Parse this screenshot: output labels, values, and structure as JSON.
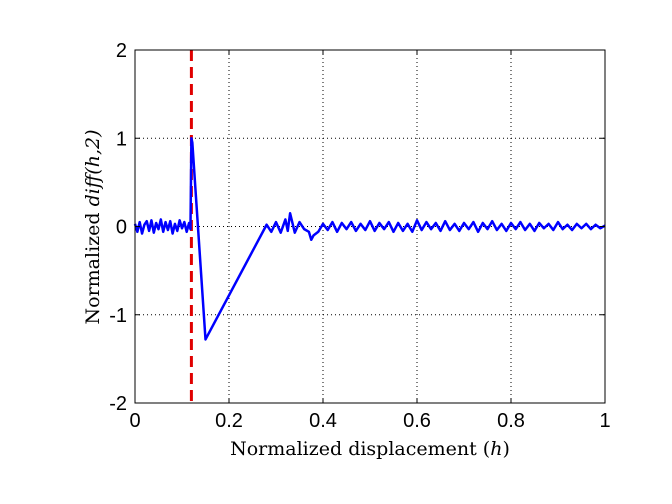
{
  "chart_data": {
    "type": "line",
    "title": "",
    "xlabel_prefix": "Normalized displacement (",
    "xlabel_var": "h",
    "xlabel_suffix": ")",
    "ylabel_prefix": "Normalized ",
    "ylabel_math": "diff(h,2)",
    "xlim": [
      0,
      1
    ],
    "ylim": [
      -2,
      2
    ],
    "xticks": [
      0,
      0.2,
      0.4,
      0.6,
      0.8,
      1
    ],
    "xtick_labels": [
      "0",
      "0.2",
      "0.4",
      "0.6",
      "0.8",
      "1"
    ],
    "yticks": [
      -2,
      -1,
      0,
      1,
      2
    ],
    "ytick_labels": [
      "-2",
      "-1",
      "0",
      "1",
      "2"
    ],
    "grid": true,
    "vline": {
      "x": 0.12,
      "color": "#e00000",
      "style": "dashed"
    },
    "series": [
      {
        "color": "#0000ff",
        "x": [
          0,
          0.005,
          0.01,
          0.015,
          0.02,
          0.025,
          0.03,
          0.035,
          0.04,
          0.045,
          0.05,
          0.055,
          0.06,
          0.065,
          0.07,
          0.075,
          0.08,
          0.085,
          0.09,
          0.095,
          0.1,
          0.105,
          0.11,
          0.115,
          0.118,
          0.12,
          0.122,
          0.15,
          0.28,
          0.29,
          0.3,
          0.31,
          0.32,
          0.325,
          0.33,
          0.34,
          0.35,
          0.36,
          0.37,
          0.375,
          0.38,
          0.39,
          0.4,
          0.41,
          0.42,
          0.43,
          0.44,
          0.45,
          0.46,
          0.47,
          0.48,
          0.49,
          0.5,
          0.51,
          0.52,
          0.53,
          0.54,
          0.55,
          0.56,
          0.57,
          0.58,
          0.59,
          0.6,
          0.61,
          0.62,
          0.63,
          0.64,
          0.65,
          0.66,
          0.67,
          0.68,
          0.69,
          0.7,
          0.71,
          0.72,
          0.73,
          0.74,
          0.75,
          0.76,
          0.77,
          0.78,
          0.79,
          0.8,
          0.81,
          0.82,
          0.83,
          0.84,
          0.85,
          0.86,
          0.87,
          0.88,
          0.89,
          0.9,
          0.91,
          0.92,
          0.93,
          0.94,
          0.95,
          0.96,
          0.97,
          0.98,
          0.99,
          1.0
        ],
        "y": [
          0.03,
          -0.06,
          0.05,
          -0.08,
          0.02,
          0.06,
          -0.05,
          0.07,
          -0.07,
          0.04,
          -0.03,
          0.08,
          -0.06,
          0.05,
          -0.04,
          0.06,
          -0.08,
          0.03,
          -0.05,
          0.07,
          -0.02,
          0.05,
          -0.06,
          0.04,
          -0.03,
          1.0,
          0.95,
          -1.28,
          0.02,
          -0.06,
          0.05,
          -0.07,
          0.08,
          -0.05,
          0.15,
          -0.07,
          0.05,
          -0.03,
          -0.06,
          -0.15,
          -0.1,
          -0.06,
          0.03,
          -0.04,
          0.05,
          -0.06,
          0.04,
          -0.03,
          0.05,
          -0.05,
          0.03,
          -0.04,
          0.06,
          -0.05,
          0.04,
          -0.03,
          0.05,
          -0.06,
          0.04,
          -0.05,
          0.03,
          -0.06,
          0.07,
          -0.04,
          0.05,
          -0.03,
          0.04,
          -0.05,
          0.06,
          -0.04,
          0.03,
          -0.05,
          0.04,
          -0.03,
          0.05,
          -0.06,
          0.04,
          -0.03,
          0.06,
          -0.04,
          0.03,
          -0.05,
          0.04,
          -0.03,
          0.05,
          -0.04,
          0.03,
          -0.05,
          0.04,
          -0.02,
          0.03,
          -0.04,
          0.05,
          -0.03,
          0.02,
          -0.04,
          0.03,
          -0.02,
          0.03,
          -0.03,
          0.02,
          -0.02,
          0.01
        ]
      }
    ]
  }
}
